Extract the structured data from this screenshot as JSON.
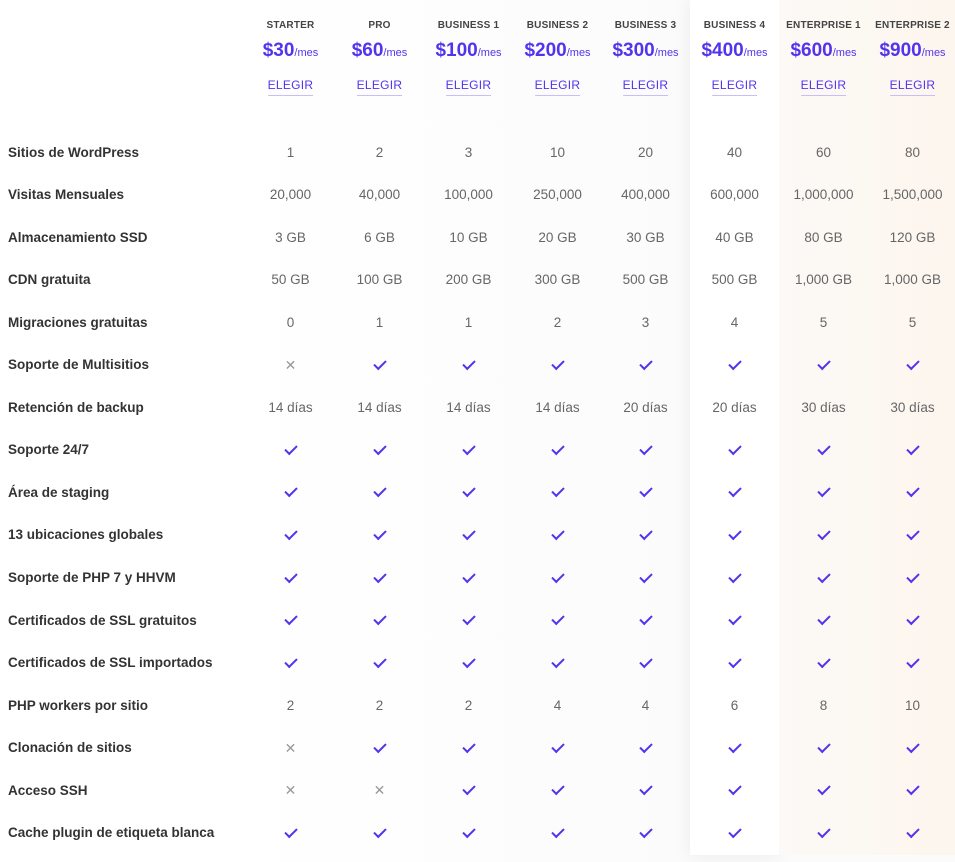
{
  "plans": [
    {
      "name": "STARTER",
      "price": "$30",
      "per": "/mes",
      "cta": "ELEGIR"
    },
    {
      "name": "PRO",
      "price": "$60",
      "per": "/mes",
      "cta": "ELEGIR"
    },
    {
      "name": "BUSINESS 1",
      "price": "$100",
      "per": "/mes",
      "cta": "ELEGIR"
    },
    {
      "name": "BUSINESS 2",
      "price": "$200",
      "per": "/mes",
      "cta": "ELEGIR"
    },
    {
      "name": "BUSINESS 3",
      "price": "$300",
      "per": "/mes",
      "cta": "ELEGIR"
    },
    {
      "name": "BUSINESS 4",
      "price": "$400",
      "per": "/mes",
      "cta": "ELEGIR"
    },
    {
      "name": "ENTERPRISE 1",
      "price": "$600",
      "per": "/mes",
      "cta": "ELEGIR"
    },
    {
      "name": "ENTERPRISE 2",
      "price": "$900",
      "per": "/mes",
      "cta": "ELEGIR"
    }
  ],
  "symbols": {
    "yes": "check-icon",
    "no": "cross-icon"
  },
  "colors": {
    "accent": "#5333ed",
    "text": "#333333",
    "muted": "#999999"
  },
  "features": [
    {
      "label": "Sitios de WordPress",
      "values": [
        "1",
        "2",
        "3",
        "10",
        "20",
        "40",
        "60",
        "80"
      ]
    },
    {
      "label": "Visitas Mensuales",
      "values": [
        "20,000",
        "40,000",
        "100,000",
        "250,000",
        "400,000",
        "600,000",
        "1,000,000",
        "1,500,000"
      ]
    },
    {
      "label": "Almacenamiento SSD",
      "values": [
        "3 GB",
        "6 GB",
        "10 GB",
        "20 GB",
        "30 GB",
        "40 GB",
        "80 GB",
        "120 GB"
      ]
    },
    {
      "label": "CDN gratuita",
      "values": [
        "50 GB",
        "100 GB",
        "200 GB",
        "300 GB",
        "500 GB",
        "500 GB",
        "1,000 GB",
        "1,000 GB"
      ]
    },
    {
      "label": "Migraciones gratuitas",
      "values": [
        "0",
        "1",
        "1",
        "2",
        "3",
        "4",
        "5",
        "5"
      ]
    },
    {
      "label": "Soporte de Multisitios",
      "values": [
        false,
        true,
        true,
        true,
        true,
        true,
        true,
        true
      ]
    },
    {
      "label": "Retención de backup",
      "values": [
        "14 días",
        "14 días",
        "14 días",
        "14 días",
        "20 días",
        "20 días",
        "30 días",
        "30 días"
      ]
    },
    {
      "label": "Soporte 24/7",
      "values": [
        true,
        true,
        true,
        true,
        true,
        true,
        true,
        true
      ]
    },
    {
      "label": "Área de staging",
      "values": [
        true,
        true,
        true,
        true,
        true,
        true,
        true,
        true
      ]
    },
    {
      "label": "13 ubicaciones globales",
      "values": [
        true,
        true,
        true,
        true,
        true,
        true,
        true,
        true
      ]
    },
    {
      "label": "Soporte de PHP 7 y HHVM",
      "values": [
        true,
        true,
        true,
        true,
        true,
        true,
        true,
        true
      ]
    },
    {
      "label": "Certificados de SSL gratuitos",
      "values": [
        true,
        true,
        true,
        true,
        true,
        true,
        true,
        true
      ]
    },
    {
      "label": "Certificados de SSL importados",
      "values": [
        true,
        true,
        true,
        true,
        true,
        true,
        true,
        true
      ]
    },
    {
      "label": "PHP workers por sitio",
      "values": [
        "2",
        "2",
        "2",
        "4",
        "4",
        "6",
        "8",
        "10"
      ]
    },
    {
      "label": "Clonación de sitios",
      "values": [
        false,
        true,
        true,
        true,
        true,
        true,
        true,
        true
      ]
    },
    {
      "label": "Acceso SSH",
      "values": [
        false,
        false,
        true,
        true,
        true,
        true,
        true,
        true
      ]
    },
    {
      "label": "Cache plugin de etiqueta blanca",
      "values": [
        true,
        true,
        true,
        true,
        true,
        true,
        true,
        true
      ]
    }
  ]
}
